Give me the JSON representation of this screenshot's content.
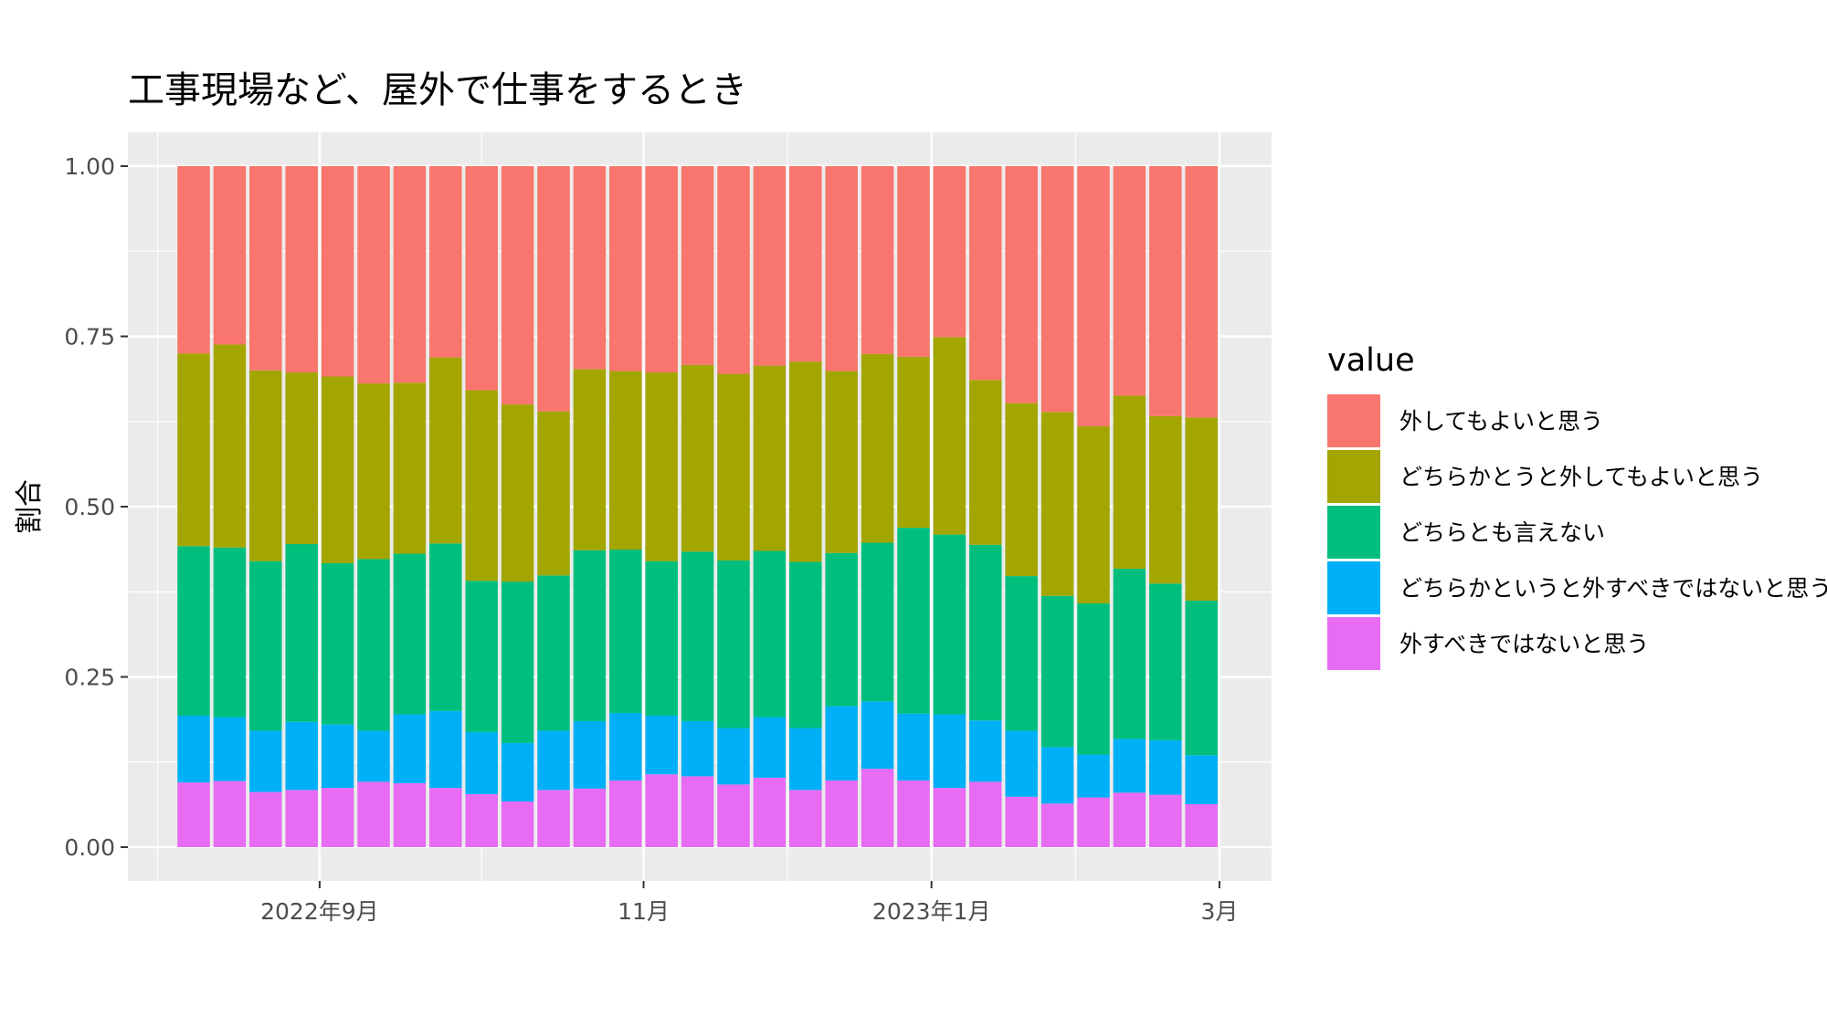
{
  "chart_data": {
    "type": "bar",
    "stacked": true,
    "title": "工事現場など、屋外で仕事をするとき",
    "xlabel": "",
    "ylabel": "割合",
    "ylim": [
      0,
      1
    ],
    "y_ticks": [
      "0.00",
      "0.25",
      "0.50",
      "0.75",
      "1.00"
    ],
    "x_ticks": [
      {
        "label": "2022年9月",
        "index": 3.5
      },
      {
        "label": "11月",
        "index": 12.5
      },
      {
        "label": "2023年1月",
        "index": 20.5
      },
      {
        "label": "3月",
        "index": 28.5
      }
    ],
    "grid": true,
    "legend": {
      "title": "value",
      "position": "right"
    },
    "bar_count": 29,
    "series": [
      {
        "name": "外すべきではないと思う",
        "color": "#E76BF3",
        "values": [
          0.095,
          0.097,
          0.081,
          0.084,
          0.087,
          0.096,
          0.094,
          0.087,
          0.078,
          0.067,
          0.084,
          0.086,
          0.098,
          0.107,
          0.104,
          0.092,
          0.102,
          0.084,
          0.098,
          0.115,
          0.098,
          0.087,
          0.096,
          0.074,
          0.064,
          0.073,
          0.08,
          0.077,
          0.063
        ]
      },
      {
        "name": "どちらかというと外すべきではないと思う",
        "color": "#00B0F6",
        "values": [
          0.098,
          0.094,
          0.09,
          0.1,
          0.093,
          0.075,
          0.101,
          0.113,
          0.091,
          0.086,
          0.087,
          0.099,
          0.099,
          0.086,
          0.081,
          0.083,
          0.089,
          0.091,
          0.109,
          0.099,
          0.098,
          0.108,
          0.09,
          0.097,
          0.083,
          0.063,
          0.079,
          0.08,
          0.072
        ]
      },
      {
        "name": "どちらとも言えない",
        "color": "#00BF7D",
        "values": [
          0.249,
          0.249,
          0.249,
          0.261,
          0.237,
          0.252,
          0.236,
          0.246,
          0.222,
          0.237,
          0.228,
          0.251,
          0.24,
          0.227,
          0.249,
          0.246,
          0.244,
          0.244,
          0.225,
          0.233,
          0.273,
          0.264,
          0.258,
          0.227,
          0.222,
          0.222,
          0.25,
          0.23,
          0.227
        ]
      },
      {
        "name": "どちらかとうと外してもよいと思う",
        "color": "#A3A500",
        "values": [
          0.283,
          0.298,
          0.28,
          0.252,
          0.274,
          0.258,
          0.251,
          0.273,
          0.28,
          0.26,
          0.241,
          0.266,
          0.262,
          0.277,
          0.274,
          0.274,
          0.272,
          0.294,
          0.267,
          0.277,
          0.251,
          0.29,
          0.242,
          0.254,
          0.27,
          0.26,
          0.254,
          0.246,
          0.269
        ]
      },
      {
        "name": "外してもよいと思う",
        "color": "#F8766D",
        "values": [
          0.275,
          0.262,
          0.3,
          0.303,
          0.309,
          0.319,
          0.318,
          0.281,
          0.329,
          0.35,
          0.36,
          0.298,
          0.301,
          0.303,
          0.292,
          0.305,
          0.293,
          0.287,
          0.301,
          0.276,
          0.28,
          0.251,
          0.314,
          0.348,
          0.361,
          0.382,
          0.337,
          0.367,
          0.369
        ]
      }
    ]
  }
}
